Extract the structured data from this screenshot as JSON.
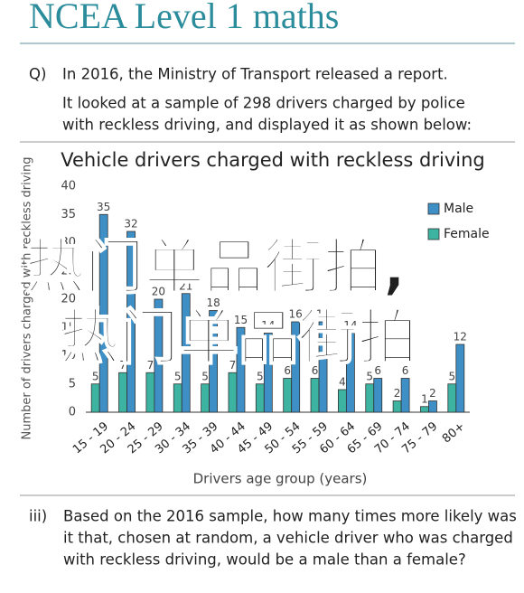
{
  "header": {
    "title": "NCEA Level 1 maths"
  },
  "question": {
    "label": "Q)",
    "lines": [
      "In 2016, the Ministry of Transport released a report.",
      "It looked at a sample of 298 drivers charged by police",
      "with reckless driving, and displayed it as shown below:"
    ]
  },
  "chart_data": {
    "type": "bar",
    "title": "Vehicle drivers charged with reckless driving",
    "x_label": "Drivers age group (years)",
    "y_label": "Number of drivers charged with reckless driving",
    "categories": [
      "15 - 19",
      "20 - 24",
      "25 - 29",
      "30 - 34",
      "35 - 39",
      "40 - 44",
      "45 - 49",
      "50 - 54",
      "55 - 59",
      "60 - 64",
      "65 - 69",
      "70 - 74",
      "75 - 79",
      "80+"
    ],
    "series": [
      {
        "name": "Male",
        "color": "#3d8fc6",
        "values": [
          35,
          32,
          20,
          21,
          18,
          15,
          14,
          16,
          16,
          14,
          6,
          6,
          2,
          12
        ]
      },
      {
        "name": "Female",
        "color": "#3db3a1",
        "values": [
          5,
          7,
          7,
          5,
          5,
          7,
          5,
          6,
          6,
          4,
          5,
          2,
          1,
          5
        ]
      }
    ],
    "ylim": [
      0,
      40
    ],
    "yticks": [
      0,
      5,
      10,
      15,
      20,
      25,
      30,
      35,
      40
    ],
    "legend": "top-right"
  },
  "part": {
    "label": "iii)",
    "lines": [
      "Based on the 2016 sample, how many times more likely was",
      "it that, chosen at random, a vehicle driver who was charged",
      "with reckless driving, would be a male than a female?"
    ]
  },
  "watermark": [
    "热门单品街拍,",
    "热门单品街拍"
  ]
}
